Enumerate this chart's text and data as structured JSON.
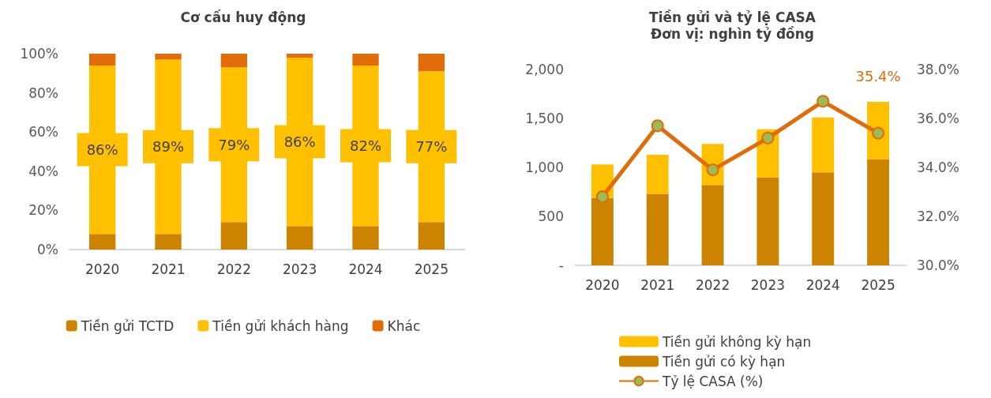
{
  "chart_data": [
    {
      "type": "bar",
      "title": "Cơ cấu huy động",
      "stacked": true,
      "categories": [
        "2020",
        "2021",
        "2022",
        "2023",
        "2024",
        "2025"
      ],
      "ylim": [
        0,
        100
      ],
      "yticks": [
        {
          "value": 0,
          "label": "0%"
        },
        {
          "value": 20,
          "label": "20%"
        },
        {
          "value": 40,
          "label": "40%"
        },
        {
          "value": 60,
          "label": "60%"
        },
        {
          "value": 80,
          "label": "80%"
        },
        {
          "value": 100,
          "label": "100%"
        }
      ],
      "grid": false,
      "legend": "bottom",
      "series": [
        {
          "name": "Tiền gửi TCTD",
          "color": "#cc8400",
          "values": [
            8,
            8,
            14,
            12,
            12,
            14
          ]
        },
        {
          "name": "Tiền gửi khách hàng",
          "color": "#ffc000",
          "values": [
            86,
            89,
            79,
            86,
            82,
            77
          ],
          "value_labels": [
            "86%",
            "89%",
            "79%",
            "86%",
            "82%",
            "77%"
          ]
        },
        {
          "name": "Khác",
          "color": "#e36c0a",
          "values": [
            6,
            3,
            7,
            2,
            6,
            9
          ]
        }
      ]
    },
    {
      "type": "bar",
      "title": "Tiền gửi và tỷ lệ CASA",
      "subtitle": "Đơn vị: nghìn tỷ đồng",
      "stacked": true,
      "categories": [
        "2020",
        "2021",
        "2022",
        "2023",
        "2024",
        "2025"
      ],
      "ylim": [
        0,
        2000
      ],
      "yticks": [
        {
          "value": 0,
          "label": "-"
        },
        500,
        {
          "value": 1000,
          "label": "1,000"
        },
        {
          "value": 1500,
          "label": "1,500"
        },
        {
          "value": 2000,
          "label": "2,000"
        }
      ],
      "y2lim": [
        30,
        38
      ],
      "y2ticks": [
        {
          "value": 30,
          "label": "30.0%"
        },
        {
          "value": 32,
          "label": "32.0%"
        },
        {
          "value": 34,
          "label": "34.0%"
        },
        {
          "value": 36,
          "label": "36.0%"
        },
        {
          "value": 38,
          "label": "38.0%"
        }
      ],
      "grid": false,
      "legend": "bottom left",
      "marker": "circle",
      "series": [
        {
          "name": "Tiền gửi có kỳ hạn",
          "color": "#cc8400",
          "values": [
            690,
            730,
            820,
            900,
            950,
            1080
          ]
        },
        {
          "name": "Tiền gửi không kỳ hạn",
          "color": "#ffc000",
          "values": [
            340,
            400,
            420,
            490,
            560,
            590
          ]
        },
        {
          "name": "Tỷ lệ CASA (%)",
          "type": "line",
          "axis": "y2",
          "color": "#e26b0a",
          "values": [
            32.8,
            35.7,
            33.9,
            35.2,
            36.7,
            35.4
          ],
          "value_labels": [
            null,
            null,
            null,
            null,
            null,
            "35.4%"
          ]
        }
      ]
    }
  ]
}
